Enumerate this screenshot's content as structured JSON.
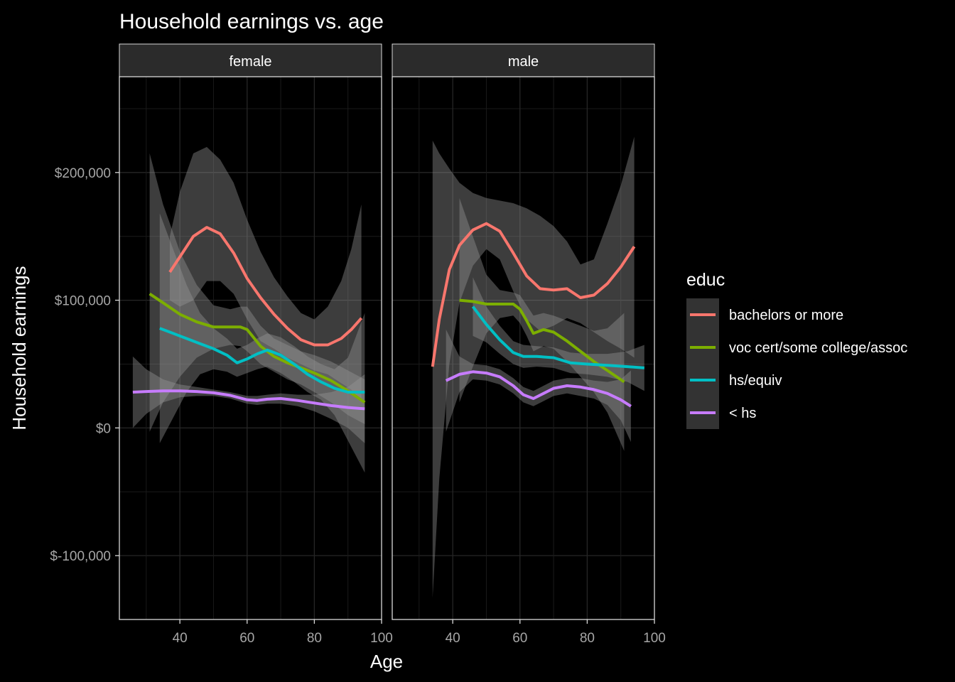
{
  "chart_data": {
    "type": "line",
    "title": "Household earnings vs. age",
    "xlabel": "Age",
    "ylabel": "Household earnings",
    "xlim": [
      22,
      100
    ],
    "ylim": [
      -150000,
      275000
    ],
    "x_ticks": [
      40,
      60,
      80,
      100
    ],
    "x_tick_labels": [
      "40",
      "60",
      "80",
      "100"
    ],
    "y_ticks": [
      -100000,
      0,
      100000,
      200000
    ],
    "y_tick_labels": [
      "$-100,000",
      "$0",
      "$100,000",
      "$200,000"
    ],
    "grid": true,
    "legend": {
      "title": "educ",
      "position": "right",
      "entries": [
        {
          "label": "bachelors or more",
          "color": "#f8766d"
        },
        {
          "label": "voc cert/some college/assoc",
          "color": "#7cae00"
        },
        {
          "label": "hs/equiv",
          "color": "#00bfc4"
        },
        {
          "label": "< hs",
          "color": "#c77cff"
        }
      ]
    },
    "panels": [
      {
        "label": "female",
        "series": [
          {
            "name": "bachelors or more",
            "color": "#f8766d",
            "x": [
              37,
              40,
              44,
              48,
              52,
              56,
              60,
              64,
              68,
              72,
              76,
              80,
              84,
              88,
              91,
              94
            ],
            "y": [
              122000,
              134000,
              150000,
              157000,
              152000,
              137000,
              117000,
              102000,
              89000,
              78000,
              69000,
              65000,
              65000,
              70000,
              77000,
              86000
            ],
            "upper": [
              150000,
              185000,
              215000,
              220000,
              210000,
              192000,
              163000,
              138000,
              118000,
              103000,
              90000,
              85000,
              95000,
              115000,
              140000,
              175000
            ],
            "lower": [
              100000,
              95000,
              100000,
              115000,
              115000,
              105000,
              85000,
              68000,
              62000,
              55000,
              50000,
              45000,
              42000,
              35000,
              30000,
              20000
            ]
          },
          {
            "name": "voc cert/some college/assoc",
            "color": "#7cae00",
            "x": [
              31,
              35,
              40,
              45,
              50,
              55,
              58,
              60,
              64,
              68,
              72,
              76,
              80,
              85,
              90,
              95
            ],
            "y": [
              105000,
              98000,
              89000,
              83000,
              79000,
              79000,
              79000,
              77000,
              64000,
              56000,
              51000,
              47000,
              43000,
              37000,
              29000,
              20000
            ],
            "upper": [
              215000,
              175000,
              138000,
              112000,
              96000,
              93000,
              95000,
              95000,
              80000,
              70000,
              65000,
              60000,
              57000,
              52000,
              45000,
              38000
            ],
            "lower": [
              -3000,
              20000,
              40000,
              55000,
              62000,
              65000,
              64000,
              60000,
              50000,
              44000,
              38000,
              34000,
              28000,
              20000,
              10000,
              3000
            ]
          },
          {
            "name": "hs/equiv",
            "color": "#00bfc4",
            "x": [
              34,
              38,
              42,
              46,
              50,
              54,
              57,
              60,
              63,
              66,
              70,
              74,
              78,
              82,
              86,
              90,
              95
            ],
            "y": [
              78000,
              74000,
              70000,
              66000,
              62000,
              57000,
              51000,
              54000,
              58000,
              61000,
              57000,
              50000,
              42000,
              36000,
              31000,
              28000,
              28000
            ],
            "upper": [
              168000,
              140000,
              112000,
              90000,
              78000,
              70000,
              62000,
              65000,
              70000,
              74000,
              71000,
              64000,
              56000,
              50000,
              46000,
              55000,
              90000
            ],
            "lower": [
              -12000,
              8000,
              28000,
              42000,
              46000,
              44000,
              40000,
              43000,
              46000,
              48000,
              43000,
              36000,
              28000,
              22000,
              10000,
              -10000,
              -35000
            ]
          },
          {
            "name": "< hs",
            "color": "#c77cff",
            "x": [
              26,
              30,
              35,
              40,
              45,
              50,
              55,
              60,
              63,
              66,
              70,
              75,
              80,
              85,
              90,
              95
            ],
            "y": [
              28000,
              28500,
              29000,
              29000,
              28500,
              27500,
              25500,
              22000,
              21500,
              22500,
              23000,
              21500,
              19500,
              17500,
              16000,
              15000
            ],
            "upper": [
              56000,
              46000,
              38000,
              34000,
              32000,
              30000,
              28000,
              25000,
              25000,
              26000,
              27000,
              26000,
              26000,
              28000,
              32000,
              42000
            ],
            "lower": [
              0,
              11000,
              20000,
              24000,
              25000,
              25000,
              23000,
              19000,
              18000,
              19000,
              19000,
              17000,
              13000,
              7000,
              0,
              -12000
            ]
          }
        ]
      },
      {
        "label": "male",
        "series": [
          {
            "name": "bachelors or more",
            "color": "#f8766d",
            "x": [
              34,
              36,
              39,
              42,
              46,
              50,
              54,
              58,
              62,
              66,
              70,
              74,
              78,
              82,
              86,
              90,
              94
            ],
            "y": [
              48000,
              85000,
              124000,
              143000,
              155000,
              160000,
              154000,
              137000,
              119000,
              109000,
              108000,
              109000,
              102000,
              104000,
              113000,
              126000,
              142000
            ],
            "upper": [
              225000,
              215000,
              203000,
              192000,
              184000,
              180000,
              178000,
              176000,
              172000,
              166000,
              158000,
              146000,
              128000,
              132000,
              160000,
              190000,
              228000
            ],
            "lower": [
              -133000,
              -40000,
              50000,
              98000,
              127000,
              140000,
              132000,
              107000,
              85000,
              76000,
              80000,
              86000,
              82000,
              75000,
              68000,
              62000,
              55000
            ]
          },
          {
            "name": "voc cert/some college/assoc",
            "color": "#7cae00",
            "x": [
              42,
              46,
              50,
              54,
              58,
              60,
              62,
              64,
              67,
              70,
              74,
              78,
              82,
              86,
              91
            ],
            "y": [
              100000,
              99000,
              97000,
              97000,
              97000,
              93000,
              84000,
              74000,
              77000,
              75000,
              68000,
              60000,
              52000,
              45000,
              36000
            ],
            "upper": [
              180000,
              150000,
              120000,
              108000,
              106000,
              104000,
              96000,
              88000,
              90000,
              88000,
              84000,
              80000,
              76000,
              78000,
              90000
            ],
            "lower": [
              20000,
              48000,
              74000,
              86000,
              88000,
              82000,
              72000,
              60000,
              64000,
              62000,
              52000,
              40000,
              28000,
              12000,
              -18000
            ]
          },
          {
            "name": "hs/equiv",
            "color": "#00bfc4",
            "x": [
              46,
              50,
              54,
              58,
              61,
              65,
              70,
              75,
              80,
              86,
              92,
              97
            ],
            "y": [
              95000,
              81000,
              69000,
              59000,
              56000,
              56000,
              55000,
              51000,
              50000,
              49000,
              48000,
              47000
            ],
            "upper": [
              118000,
              95000,
              80000,
              68000,
              65000,
              64000,
              63000,
              59000,
              58000,
              58000,
              60000,
              65000
            ],
            "lower": [
              72000,
              67000,
              58000,
              50000,
              47000,
              48000,
              47000,
              43000,
              42000,
              40000,
              36000,
              29000
            ]
          },
          {
            "name": "< hs",
            "color": "#c77cff",
            "x": [
              38,
              42,
              46,
              50,
              54,
              58,
              61,
              64,
              67,
              70,
              74,
              78,
              82,
              86,
              90,
              93
            ],
            "y": [
              37000,
              42000,
              44000,
              43000,
              40000,
              33000,
              26000,
              23000,
              27000,
              31000,
              33000,
              32000,
              30000,
              27000,
              22000,
              17000
            ],
            "upper": [
              77000,
              56000,
              50000,
              49000,
              46000,
              39000,
              32000,
              29000,
              33000,
              37000,
              39000,
              39000,
              37000,
              36000,
              38000,
              45000
            ],
            "lower": [
              -3000,
              28000,
              38000,
              37000,
              34000,
              27000,
              20000,
              17000,
              21000,
              25000,
              27000,
              25000,
              23000,
              18000,
              6000,
              -11000
            ]
          }
        ]
      }
    ]
  }
}
